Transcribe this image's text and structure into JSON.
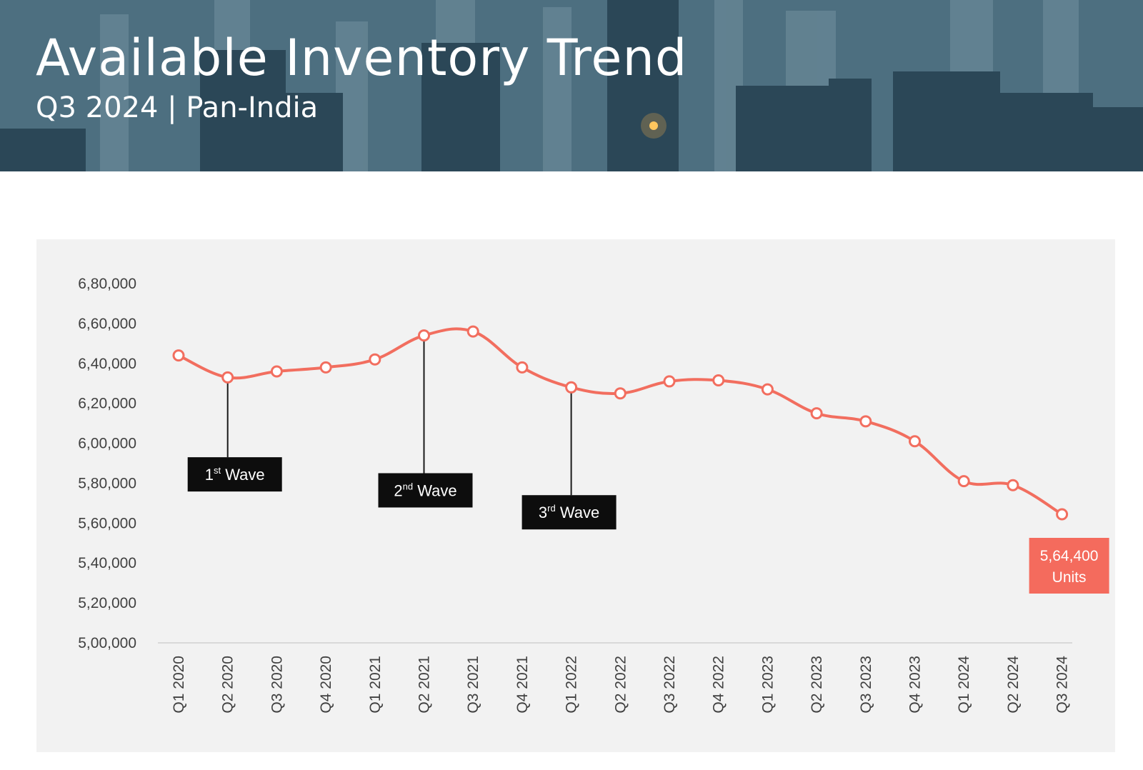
{
  "header": {
    "title": "Available Inventory Trend",
    "subtitle": "Q3 2024 | Pan-India"
  },
  "colors": {
    "line": "#f26e5f",
    "callout_bg": "#f46b5d",
    "annotation_bg": "#0d0d0d",
    "panel_bg": "#f2f2f2"
  },
  "chart_data": {
    "type": "line",
    "title": "Available Inventory Trend",
    "subtitle": "Q3 2024 | Pan-India",
    "categories": [
      "Q1 2020",
      "Q2 2020",
      "Q3 2020",
      "Q4 2020",
      "Q1 2021",
      "Q2 2021",
      "Q3 2021",
      "Q4 2021",
      "Q1 2022",
      "Q2 2022",
      "Q3 2022",
      "Q4 2022",
      "Q1 2023",
      "Q2 2023",
      "Q3 2023",
      "Q4 2023",
      "Q1 2024",
      "Q2 2024",
      "Q3 2024"
    ],
    "series": [
      {
        "name": "",
        "values": [
          644000,
          633000,
          636000,
          638000,
          642000,
          654000,
          656000,
          638000,
          628000,
          625000,
          631000,
          631500,
          627000,
          615000,
          611000,
          601000,
          581000,
          579000,
          564400
        ]
      }
    ],
    "ylim": [
      500000,
      680000
    ],
    "yticks": [
      500000,
      520000,
      540000,
      560000,
      580000,
      600000,
      620000,
      640000,
      660000,
      680000
    ],
    "ytick_labels": [
      "5,00,000",
      "5,20,000",
      "5,40,000",
      "5,60,000",
      "5,80,000",
      "6,00,000",
      "6,20,000",
      "6,40,000",
      "6,60,000",
      "6,80,000"
    ],
    "grid": false,
    "legend": "none",
    "annotations": [
      {
        "num": "1",
        "sup": "st",
        "label": "Wave",
        "category": "Q2 2020",
        "box_value": 593000
      },
      {
        "num": "2",
        "sup": "nd",
        "label": "Wave",
        "category": "Q2 2021",
        "box_value": 585000
      },
      {
        "num": "3",
        "sup": "rd",
        "label": "Wave",
        "category": "Q1 2022",
        "box_value": 574000
      }
    ],
    "callout": {
      "value_text": "5,64,400",
      "unit_text": "Units",
      "category": "Q3 2024"
    }
  }
}
